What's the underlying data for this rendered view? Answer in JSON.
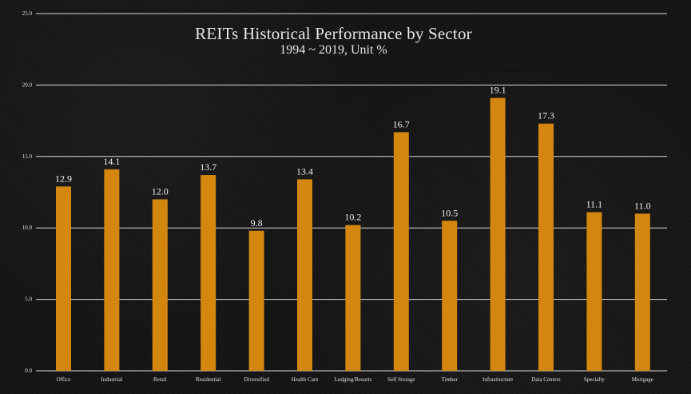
{
  "chart_data": {
    "type": "bar",
    "title": "REITs Historical Performance by Sector",
    "subtitle": "1994 ~ 2019, Unit %",
    "categories": [
      "Office",
      "Industrial",
      "Retail",
      "Residential",
      "Diversified",
      "Health Care",
      "Lodging/Resorts",
      "Self Storage",
      "Timber",
      "Infrastructure",
      "Data Centers",
      "Specialty",
      "Mortgage"
    ],
    "values": [
      12.9,
      14.1,
      12.0,
      13.7,
      9.8,
      13.4,
      10.2,
      16.7,
      10.5,
      19.1,
      17.3,
      11.1,
      11.0
    ],
    "value_labels": [
      "12.9",
      "14.1",
      "12.0",
      "13.7",
      "9.8",
      "13.4",
      "10.2",
      "16.7",
      "10.5",
      "19.1",
      "17.3",
      "11.1",
      "11.0"
    ],
    "yticks": [
      "0.0",
      "5.0",
      "10.0",
      "15.0",
      "20.0",
      "25.0"
    ],
    "ylim": [
      0,
      25
    ],
    "grid": true,
    "bar_color": "#d4870f",
    "note_lines": [
      "Timber: 2011 ~",
      "Infra: 2012",
      "DC: 2015",
      "Specialty: 2015 ~"
    ]
  }
}
